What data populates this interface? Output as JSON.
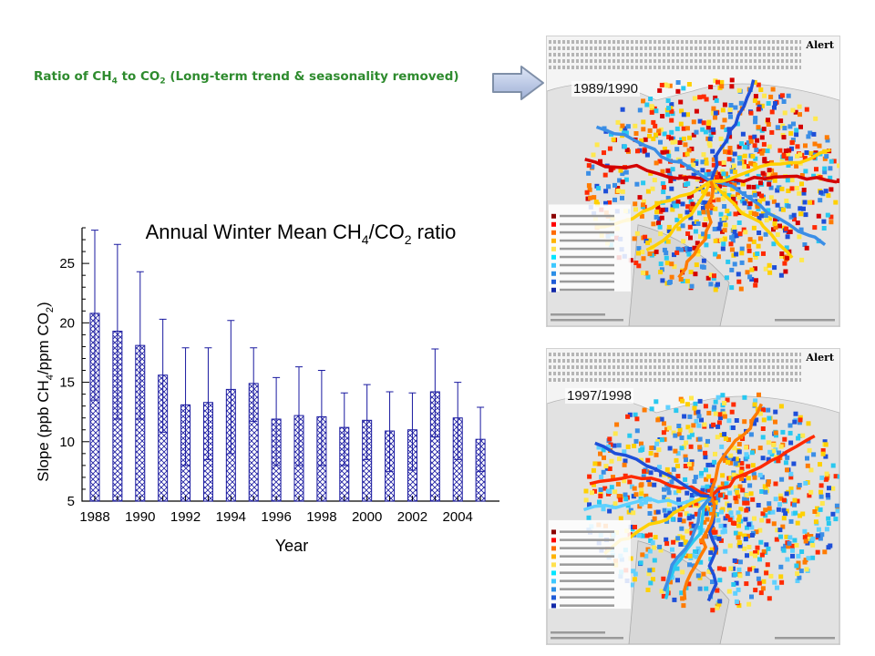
{
  "heading": {
    "prefix": "Ratio of CH",
    "sub1": "4",
    "mid": " to CO",
    "sub2": "2",
    "suffix": " (Long-term trend & seasonality removed)"
  },
  "maps": [
    {
      "period": "1989/1990",
      "alert": "Alert"
    },
    {
      "period": "1997/1998",
      "alert": "Alert"
    }
  ],
  "chart_data": {
    "type": "bar",
    "title": "Annual Winter Mean CH4/CO2 ratio",
    "xlabel": "Year",
    "ylabel": "Slope (ppb CH4/ppm CO2)",
    "ylim": [
      5,
      28
    ],
    "yticks": [
      5,
      10,
      15,
      20,
      25
    ],
    "xtick_labels": [
      "1988",
      "1990",
      "1992",
      "1994",
      "1996",
      "1998",
      "2000",
      "2002",
      "2004"
    ],
    "categories": [
      1988,
      1989,
      1990,
      1991,
      1992,
      1993,
      1994,
      1995,
      1996,
      1997,
      1998,
      1999,
      2000,
      2001,
      2002,
      2003,
      2004,
      2005
    ],
    "values": [
      20.8,
      19.3,
      18.1,
      15.6,
      13.1,
      13.3,
      14.4,
      14.9,
      11.9,
      12.2,
      12.1,
      11.2,
      11.8,
      10.9,
      11.0,
      14.2,
      12.0,
      10.2
    ],
    "err_upper": [
      27.8,
      26.6,
      24.3,
      20.3,
      17.9,
      17.9,
      20.2,
      17.9,
      15.4,
      16.3,
      16.0,
      14.1,
      14.8,
      14.2,
      14.1,
      17.8,
      15.0,
      12.9
    ],
    "err_lower": [
      13.5,
      11.9,
      11.9,
      10.8,
      8.0,
      8.5,
      9.0,
      11.7,
      8.0,
      8.0,
      8.0,
      8.0,
      8.5,
      7.5,
      7.6,
      10.4,
      8.5,
      7.5
    ],
    "pattern": "crosshatch",
    "bar_color": "#1a1aa0"
  },
  "colors": {
    "heading": "#2e8b2e",
    "chart": "#1a1aa0",
    "arrow_fill": "#b8c7e8",
    "arrow_stroke": "#7f8fa8"
  }
}
